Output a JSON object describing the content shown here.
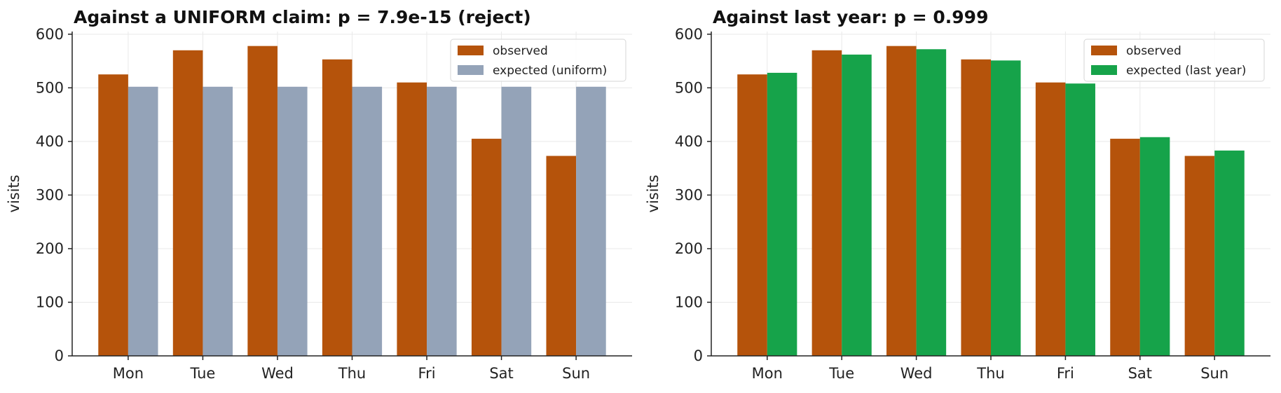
{
  "chart_data": [
    {
      "type": "bar",
      "title": "Against a UNIFORM claim: p = 7.9e-15  (reject)",
      "xlabel": "",
      "ylabel": "visits",
      "categories": [
        "Mon",
        "Tue",
        "Wed",
        "Thu",
        "Fri",
        "Sat",
        "Sun"
      ],
      "series": [
        {
          "name": "observed",
          "color": "#b5530b",
          "values": [
            525,
            570,
            578,
            553,
            510,
            405,
            373
          ]
        },
        {
          "name": "expected (uniform)",
          "color": "#94a3b8",
          "values": [
            502,
            502,
            502,
            502,
            502,
            502,
            502
          ]
        }
      ],
      "ylim": [
        0,
        605
      ],
      "yticks": [
        0,
        100,
        200,
        300,
        400,
        500,
        600
      ],
      "grid": true,
      "legend": "top-right"
    },
    {
      "type": "bar",
      "title": "Against last year: p = 0.999",
      "xlabel": "",
      "ylabel": "visits",
      "categories": [
        "Mon",
        "Tue",
        "Wed",
        "Thu",
        "Fri",
        "Sat",
        "Sun"
      ],
      "series": [
        {
          "name": "observed",
          "color": "#b5530b",
          "values": [
            525,
            570,
            578,
            553,
            510,
            405,
            373
          ]
        },
        {
          "name": "expected (last year)",
          "color": "#16a34a",
          "values": [
            528,
            562,
            572,
            551,
            508,
            408,
            383
          ]
        }
      ],
      "ylim": [
        0,
        605
      ],
      "yticks": [
        0,
        100,
        200,
        300,
        400,
        500,
        600
      ],
      "grid": true,
      "legend": "top-right"
    }
  ]
}
